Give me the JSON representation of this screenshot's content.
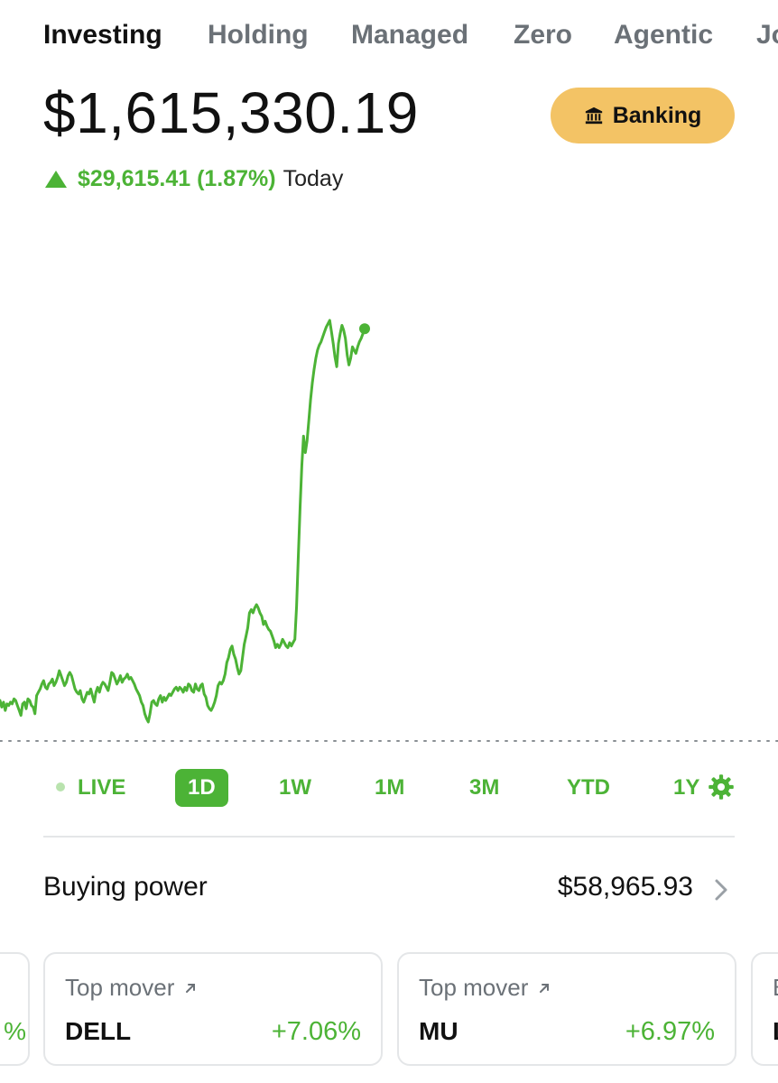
{
  "tabs": [
    {
      "label": "Investing",
      "active": true
    },
    {
      "label": "Holding",
      "active": false
    },
    {
      "label": "Managed",
      "active": false
    },
    {
      "label": "Zero",
      "active": false
    },
    {
      "label": "Agentic",
      "active": false
    },
    {
      "label": "Jo",
      "active": false
    }
  ],
  "portfolio": {
    "value": "$1,615,330.19",
    "change_amount": "$29,615.41 (1.87%)",
    "change_period": "Today",
    "change_direction": "up"
  },
  "banking_button": {
    "label": "Banking",
    "icon": "bank-icon"
  },
  "chart_data": {
    "type": "line",
    "range": "1D",
    "color": "#4cb336",
    "series": [
      {
        "values": [
          0.13,
          0.09,
          0.12,
          0.07,
          0.11,
          0.1,
          0.12,
          0.11,
          0.14,
          0.13,
          0.1,
          0.07,
          0.04,
          0.11,
          0.12,
          0.08,
          0.14,
          0.13,
          0.1,
          0.09,
          0.05,
          0.16,
          0.18,
          0.2,
          0.23,
          0.25,
          0.21,
          0.2,
          0.23,
          0.24,
          0.26,
          0.22,
          0.24,
          0.27,
          0.31,
          0.28,
          0.25,
          0.22,
          0.24,
          0.28,
          0.3,
          0.28,
          0.24,
          0.2,
          0.18,
          0.17,
          0.19,
          0.14,
          0.12,
          0.15,
          0.18,
          0.17,
          0.2,
          0.16,
          0.12,
          0.18,
          0.21,
          0.18,
          0.22,
          0.24,
          0.23,
          0.21,
          0.19,
          0.24,
          0.3,
          0.29,
          0.26,
          0.23,
          0.25,
          0.28,
          0.24,
          0.26,
          0.27,
          0.29,
          0.26,
          0.27,
          0.25,
          0.23,
          0.2,
          0.18,
          0.16,
          0.12,
          0.1,
          0.05,
          0.02,
          0.0,
          0.05,
          0.12,
          0.13,
          0.11,
          0.1,
          0.14,
          0.16,
          0.12,
          0.15,
          0.13,
          0.15,
          0.17,
          0.16,
          0.18,
          0.2,
          0.21,
          0.19,
          0.21,
          0.2,
          0.18,
          0.21,
          0.19,
          0.23,
          0.22,
          0.19,
          0.18,
          0.23,
          0.2,
          0.19,
          0.22,
          0.23,
          0.17,
          0.15,
          0.1,
          0.08,
          0.07,
          0.09,
          0.12,
          0.16,
          0.22,
          0.24,
          0.23,
          0.25,
          0.29,
          0.36,
          0.39,
          0.44,
          0.46,
          0.41,
          0.38,
          0.33,
          0.29,
          0.31,
          0.39,
          0.47,
          0.52,
          0.57,
          0.66,
          0.68,
          0.66,
          0.69,
          0.71,
          0.69,
          0.66,
          0.64,
          0.59,
          0.61,
          0.58,
          0.56,
          0.55,
          0.52,
          0.49,
          0.45,
          0.47,
          0.45,
          0.47,
          0.5,
          0.48,
          0.46,
          0.45,
          0.48,
          0.46,
          0.48,
          0.5,
          0.7,
          1.0,
          1.3,
          1.55,
          1.73,
          1.63,
          1.7,
          1.82,
          1.95,
          2.05,
          2.13,
          2.2,
          2.25,
          2.28,
          2.3,
          2.33,
          2.36,
          2.39,
          2.41,
          2.43,
          2.36,
          2.29,
          2.21,
          2.15,
          2.29,
          2.35,
          2.4,
          2.37,
          2.32,
          2.22,
          2.16,
          2.2,
          2.27,
          2.25,
          2.23,
          2.27,
          2.3,
          2.32,
          2.35,
          2.38
        ]
      }
    ],
    "ranges": [
      "LIVE",
      "1D",
      "1W",
      "1M",
      "3M",
      "YTD",
      "1Y"
    ],
    "active_range": "1D"
  },
  "buying_power": {
    "label": "Buying power",
    "value": "$58,965.93"
  },
  "movers": [
    {
      "title": "Top mover",
      "ticker": "DELL",
      "change": "+7.06%"
    },
    {
      "title": "Top mover",
      "ticker": "MU",
      "change": "+6.97%"
    }
  ],
  "partial": {
    "left_card_text": "%",
    "right_card_title": "B",
    "right_card_ticker": "L"
  },
  "colors": {
    "accent": "#4cb336",
    "banking": "#f3c365",
    "muted_text": "#6b7177"
  }
}
